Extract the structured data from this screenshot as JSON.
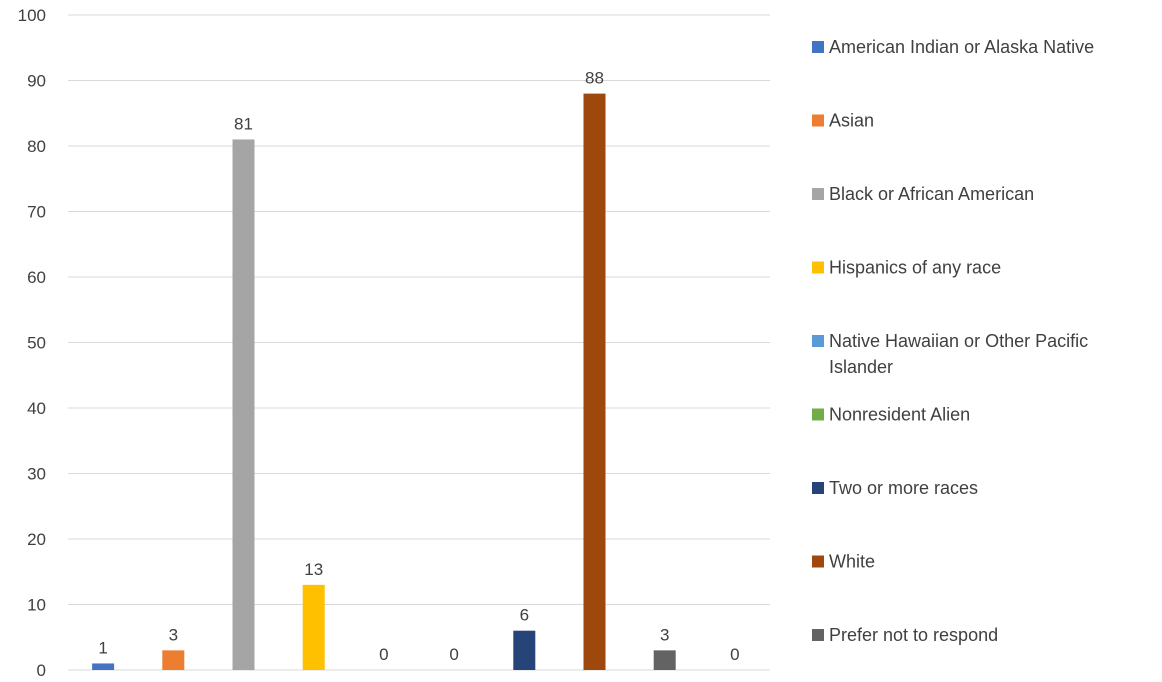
{
  "chart_data": {
    "type": "bar",
    "title": "",
    "xlabel": "",
    "ylabel": "",
    "ylim": [
      0,
      100
    ],
    "yticks": [
      0,
      10,
      20,
      30,
      40,
      50,
      60,
      70,
      80,
      90,
      100
    ],
    "grid": true,
    "legend_position": "right",
    "series": [
      {
        "name": "American Indian or Alaska Native",
        "value": 1,
        "label": "1",
        "color": "#4472C4"
      },
      {
        "name": "Asian",
        "value": 3,
        "label": "3",
        "color": "#ED7D31"
      },
      {
        "name": "Black or African American",
        "value": 81,
        "label": "81",
        "color": "#A5A5A5"
      },
      {
        "name": "Hispanics of any race",
        "value": 13,
        "label": "13",
        "color": "#FFC000"
      },
      {
        "name": "Native Hawaiian or Other Pacific Islander",
        "value": 0,
        "label": "0",
        "color": "#5B9BD5"
      },
      {
        "name": "Nonresident Alien",
        "value": 0,
        "label": "0",
        "color": "#70AD47"
      },
      {
        "name": "Two or more races",
        "value": 6,
        "label": "6",
        "color": "#264478"
      },
      {
        "name": "White",
        "value": 88,
        "label": "88",
        "color": "#9E480E"
      },
      {
        "name": "Prefer not to respond",
        "value": 3,
        "label": "3",
        "color": "#636363"
      },
      {
        "name": "",
        "value": 0,
        "label": "0",
        "color": "#997300"
      }
    ],
    "legend": [
      {
        "lines": [
          "American Indian or Alaska Native"
        ],
        "color": "#4472C4"
      },
      {
        "lines": [
          "Asian"
        ],
        "color": "#ED7D31"
      },
      {
        "lines": [
          "Black or African American"
        ],
        "color": "#A5A5A5"
      },
      {
        "lines": [
          "Hispanics of any race"
        ],
        "color": "#FFC000"
      },
      {
        "lines": [
          "Native Hawaiian or Other Pacific",
          "Islander"
        ],
        "color": "#5B9BD5"
      },
      {
        "lines": [
          "Nonresident Alien"
        ],
        "color": "#70AD47"
      },
      {
        "lines": [
          "Two or more races"
        ],
        "color": "#264478"
      },
      {
        "lines": [
          "White"
        ],
        "color": "#9E480E"
      },
      {
        "lines": [
          "Prefer not to respond"
        ],
        "color": "#636363"
      }
    ]
  }
}
